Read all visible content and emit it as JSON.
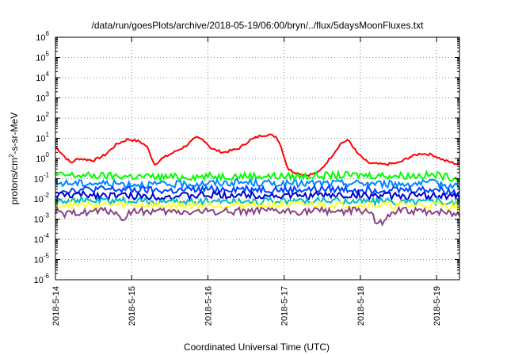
{
  "chart_data": {
    "type": "line",
    "title": "/data/run/goesPlots/archive/2018-05-19/06:00/bryn/../flux/5daysMoonFluxes.txt",
    "xlabel": "Coordinated Universal Time (UTC)",
    "ylabel": "protons/cm²-s-sr-MeV",
    "yscale": "log",
    "ylim_exp": [
      -6,
      6
    ],
    "xlim_days": [
      0,
      5.3
    ],
    "grid": true,
    "legend": "none",
    "yticks": [
      {
        "base": "10",
        "exp": "6"
      },
      {
        "base": "10",
        "exp": "5"
      },
      {
        "base": "10",
        "exp": "4"
      },
      {
        "base": "10",
        "exp": "3"
      },
      {
        "base": "10",
        "exp": "2"
      },
      {
        "base": "10",
        "exp": "1"
      },
      {
        "base": "10",
        "exp": "0"
      },
      {
        "base": "10",
        "exp": "-1"
      },
      {
        "base": "10",
        "exp": "-2"
      },
      {
        "base": "10",
        "exp": "-3"
      },
      {
        "base": "10",
        "exp": "-4"
      },
      {
        "base": "10",
        "exp": "-5"
      },
      {
        "base": "10",
        "exp": "-6"
      }
    ],
    "xticks": [
      "2018-5-14",
      "2018-5-15",
      "2018-5-16",
      "2018-5-17",
      "2018-5-18",
      "2018-5-19"
    ],
    "series": [
      {
        "color": "#ff0000",
        "x": [
          0,
          0.1,
          0.2,
          0.3,
          0.5,
          0.65,
          0.8,
          0.95,
          1.1,
          1.2,
          1.3,
          1.4,
          1.55,
          1.7,
          1.85,
          1.95,
          2.05,
          2.2,
          2.4,
          2.55,
          2.7,
          2.8,
          2.9,
          2.95,
          3.05,
          3.15,
          3.3,
          3.45,
          3.6,
          3.75,
          3.85,
          3.95,
          4.1,
          4.3,
          4.5,
          4.65,
          4.8,
          4.95,
          5.1,
          5.3
        ],
        "y": [
          4,
          1.5,
          0.6,
          1,
          0.8,
          1.5,
          5,
          9,
          7,
          4,
          0.5,
          1,
          2,
          4,
          11,
          8,
          3,
          2,
          3,
          8,
          14,
          15,
          12,
          5,
          0.3,
          0.2,
          0.15,
          0.2,
          1,
          6,
          8,
          2,
          0.6,
          0.5,
          0.6,
          1.2,
          1.8,
          1.5,
          0.8,
          0.5
        ]
      },
      {
        "color": "#00ff00",
        "x": [
          0,
          0.5,
          1,
          1.5,
          2,
          2.5,
          3,
          3.5,
          4,
          4.5,
          5,
          5.3
        ],
        "y": [
          0.15,
          0.14,
          0.13,
          0.12,
          0.13,
          0.14,
          0.13,
          0.14,
          0.15,
          0.14,
          0.15,
          0.1
        ]
      },
      {
        "color": "#0088ff",
        "x": [
          0,
          0.5,
          1,
          1.5,
          2,
          2.5,
          3,
          3.5,
          4,
          4.5,
          5,
          5.3
        ],
        "y": [
          0.06,
          0.06,
          0.055,
          0.05,
          0.06,
          0.065,
          0.055,
          0.06,
          0.06,
          0.055,
          0.06,
          0.04
        ]
      },
      {
        "color": "#0044ff",
        "x": [
          0,
          0.5,
          1,
          1.5,
          2,
          2.5,
          3,
          3.5,
          4,
          4.5,
          5,
          5.3
        ],
        "y": [
          0.025,
          0.03,
          0.028,
          0.025,
          0.03,
          0.032,
          0.028,
          0.03,
          0.03,
          0.028,
          0.03,
          0.02
        ]
      },
      {
        "color": "#0000cc",
        "x": [
          0,
          0.5,
          1,
          1.5,
          2,
          2.5,
          3,
          3.5,
          4,
          4.5,
          5,
          5.3
        ],
        "y": [
          0.015,
          0.016,
          0.014,
          0.013,
          0.015,
          0.016,
          0.014,
          0.015,
          0.015,
          0.014,
          0.015,
          0.012
        ]
      },
      {
        "color": "#00bbbb",
        "x": [
          0,
          0.5,
          1,
          1.5,
          2,
          2.5,
          3,
          3.5,
          4,
          4.5,
          5,
          5.3
        ],
        "y": [
          0.009,
          0.008,
          0.008,
          0.007,
          0.008,
          0.008,
          0.008,
          0.008,
          0.008,
          0.007,
          0.008,
          0.006
        ]
      },
      {
        "color": "#ffff33",
        "x": [
          0,
          0.5,
          1,
          1.5,
          2,
          2.5,
          3,
          3.5,
          4,
          4.5,
          5,
          5.3
        ],
        "y": [
          0.005,
          0.005,
          0.005,
          0.0045,
          0.005,
          0.005,
          0.005,
          0.005,
          0.005,
          0.0045,
          0.005,
          0.004
        ]
      },
      {
        "color": "#884488",
        "x": [
          0,
          0.1,
          0.3,
          0.6,
          0.8,
          0.85,
          1,
          1.5,
          2,
          2.5,
          3,
          3.5,
          4,
          4.15,
          4.2,
          4.5,
          5,
          5.3
        ],
        "y": [
          0.0025,
          0.0015,
          0.0022,
          0.0025,
          0.0025,
          0.0008,
          0.0025,
          0.0022,
          0.0024,
          0.0025,
          0.0023,
          0.0025,
          0.0025,
          0.0025,
          0.0005,
          0.0025,
          0.0024,
          0.0018
        ]
      }
    ]
  }
}
